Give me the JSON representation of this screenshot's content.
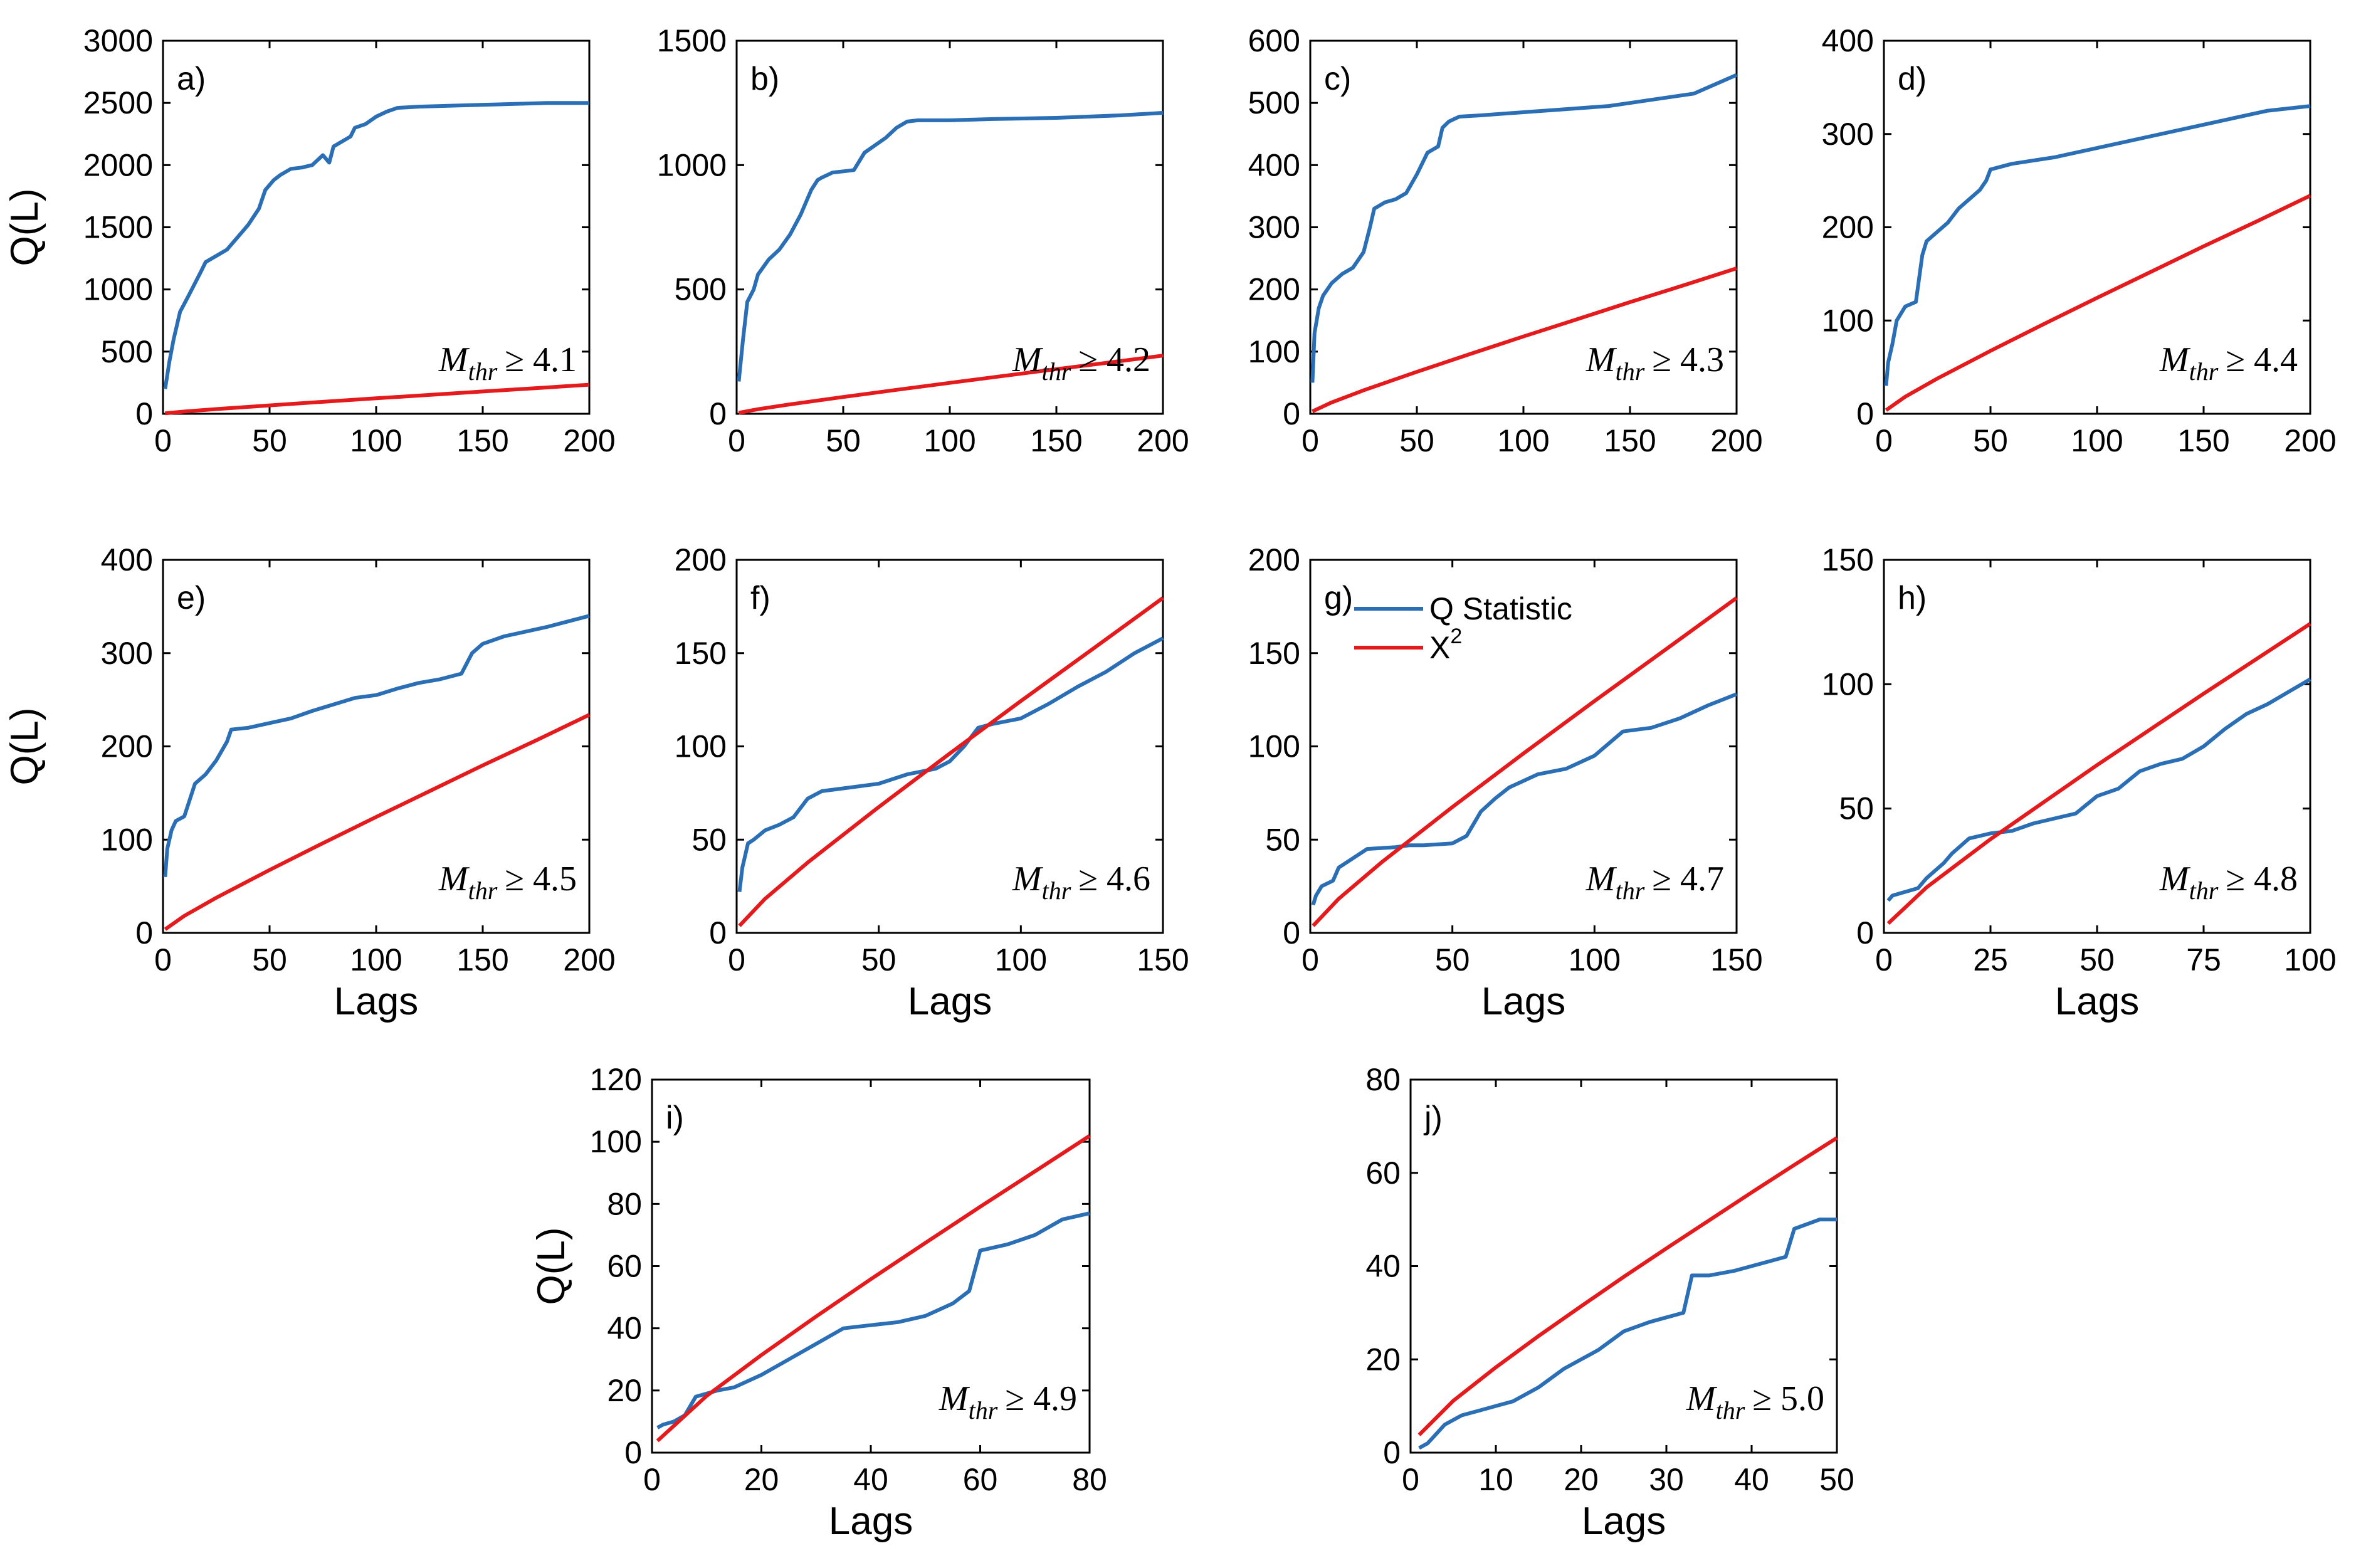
{
  "legend": {
    "q_label": "Q Statistic",
    "x_label": "X",
    "x_sup": "2"
  },
  "colors": {
    "q": "#2A6EB5",
    "x": "#E41A1C"
  },
  "chart_data": [
    {
      "type": "line",
      "panel": "a)",
      "annotation": {
        "sym": "M",
        "sub": "thr",
        "rel": "≥ 4.1"
      },
      "ylabel": "Q(L)",
      "xlabel": "",
      "xlim": [
        0,
        200
      ],
      "ylim": [
        0,
        3000
      ],
      "xticks": [
        0,
        50,
        100,
        150,
        200
      ],
      "yticks": [
        0,
        500,
        1000,
        1500,
        2000,
        2500,
        3000
      ],
      "series": [
        {
          "name": "Q Statistic",
          "x": [
            1,
            3,
            5,
            8,
            12,
            15,
            18,
            20,
            25,
            30,
            35,
            40,
            45,
            48,
            52,
            55,
            60,
            65,
            70,
            75,
            78,
            80,
            85,
            88,
            90,
            95,
            100,
            105,
            110,
            120,
            140,
            160,
            180,
            200
          ],
          "y": [
            200,
            420,
            600,
            820,
            950,
            1050,
            1150,
            1220,
            1270,
            1320,
            1420,
            1520,
            1650,
            1800,
            1880,
            1920,
            1970,
            1980,
            2000,
            2080,
            2020,
            2150,
            2200,
            2230,
            2300,
            2330,
            2390,
            2430,
            2460,
            2470,
            2480,
            2490,
            2500,
            2500
          ]
        },
        {
          "name": "X2",
          "x": [
            1,
            10,
            25,
            50,
            75,
            100,
            125,
            150,
            175,
            200
          ],
          "y": [
            3.8,
            18.3,
            37.7,
            67.5,
            96.2,
            124.3,
            151.9,
            179.6,
            206.4,
            233.9
          ]
        }
      ]
    },
    {
      "type": "line",
      "panel": "b)",
      "annotation": {
        "sym": "M",
        "sub": "thr",
        "rel": "≥ 4.2"
      },
      "ylabel": "",
      "xlabel": "",
      "xlim": [
        0,
        200
      ],
      "ylim": [
        0,
        1500
      ],
      "xticks": [
        0,
        50,
        100,
        150,
        200
      ],
      "yticks": [
        0,
        500,
        1000,
        1500
      ],
      "series": [
        {
          "name": "Q Statistic",
          "x": [
            1,
            3,
            5,
            8,
            10,
            15,
            20,
            25,
            30,
            35,
            38,
            40,
            45,
            50,
            55,
            60,
            65,
            70,
            75,
            80,
            85,
            100,
            120,
            150,
            180,
            200
          ],
          "y": [
            130,
            300,
            450,
            500,
            560,
            620,
            660,
            720,
            800,
            900,
            940,
            950,
            970,
            975,
            980,
            1050,
            1080,
            1110,
            1150,
            1175,
            1180,
            1180,
            1185,
            1190,
            1200,
            1210
          ]
        },
        {
          "name": "X2",
          "x": [
            1,
            10,
            25,
            50,
            75,
            100,
            125,
            150,
            175,
            200
          ],
          "y": [
            3.8,
            18.3,
            37.7,
            67.5,
            96.2,
            124.3,
            151.9,
            179.6,
            206.4,
            233.9
          ]
        }
      ]
    },
    {
      "type": "line",
      "panel": "c)",
      "annotation": {
        "sym": "M",
        "sub": "thr",
        "rel": "≥ 4.3"
      },
      "ylabel": "",
      "xlabel": "",
      "xlim": [
        0,
        200
      ],
      "ylim": [
        0,
        600
      ],
      "xticks": [
        0,
        50,
        100,
        150,
        200
      ],
      "yticks": [
        0,
        100,
        200,
        300,
        400,
        500,
        600
      ],
      "series": [
        {
          "name": "Q Statistic",
          "x": [
            1,
            2,
            4,
            6,
            10,
            15,
            20,
            25,
            28,
            30,
            35,
            40,
            45,
            50,
            55,
            60,
            62,
            65,
            68,
            70,
            80,
            100,
            120,
            140,
            150,
            160,
            180,
            190,
            200
          ],
          "y": [
            50,
            130,
            170,
            190,
            210,
            225,
            235,
            260,
            300,
            330,
            340,
            345,
            355,
            385,
            420,
            430,
            460,
            470,
            475,
            478,
            480,
            485,
            490,
            495,
            500,
            505,
            515,
            530,
            545
          ]
        },
        {
          "name": "X2",
          "x": [
            1,
            10,
            25,
            50,
            75,
            100,
            125,
            150,
            175,
            200
          ],
          "y": [
            3.8,
            18.3,
            37.7,
            67.5,
            96.2,
            124.3,
            151.9,
            179.6,
            206.4,
            233.9
          ]
        }
      ]
    },
    {
      "type": "line",
      "panel": "d)",
      "annotation": {
        "sym": "M",
        "sub": "thr",
        "rel": "≥ 4.4"
      },
      "ylabel": "",
      "xlabel": "",
      "xlim": [
        0,
        200
      ],
      "ylim": [
        0,
        400
      ],
      "xticks": [
        0,
        50,
        100,
        150,
        200
      ],
      "yticks": [
        0,
        100,
        200,
        300,
        400
      ],
      "series": [
        {
          "name": "Q Statistic",
          "x": [
            1,
            2,
            4,
            6,
            10,
            15,
            18,
            20,
            25,
            30,
            35,
            40,
            45,
            48,
            50,
            55,
            60,
            80,
            100,
            120,
            140,
            160,
            180,
            200
          ],
          "y": [
            30,
            55,
            75,
            100,
            115,
            120,
            170,
            185,
            195,
            205,
            220,
            230,
            240,
            250,
            262,
            265,
            268,
            275,
            285,
            295,
            305,
            315,
            325,
            330
          ]
        },
        {
          "name": "X2",
          "x": [
            1,
            10,
            25,
            50,
            75,
            100,
            125,
            150,
            175,
            200
          ],
          "y": [
            3.8,
            18.3,
            37.7,
            67.5,
            96.2,
            124.3,
            151.9,
            179.6,
            206.4,
            233.9
          ]
        }
      ]
    },
    {
      "type": "line",
      "panel": "e)",
      "annotation": {
        "sym": "M",
        "sub": "thr",
        "rel": "≥ 4.5"
      },
      "ylabel": "Q(L)",
      "xlabel": "Lags",
      "xlim": [
        0,
        200
      ],
      "ylim": [
        0,
        400
      ],
      "xticks": [
        0,
        50,
        100,
        150,
        200
      ],
      "yticks": [
        0,
        100,
        200,
        300,
        400
      ],
      "series": [
        {
          "name": "Q Statistic",
          "x": [
            1,
            2,
            4,
            6,
            10,
            15,
            20,
            25,
            30,
            32,
            40,
            50,
            60,
            70,
            80,
            90,
            100,
            110,
            120,
            130,
            140,
            145,
            150,
            160,
            180,
            200
          ],
          "y": [
            60,
            90,
            110,
            120,
            125,
            160,
            170,
            185,
            205,
            218,
            220,
            225,
            230,
            238,
            245,
            252,
            255,
            262,
            268,
            272,
            278,
            300,
            310,
            318,
            328,
            340
          ]
        },
        {
          "name": "X2",
          "x": [
            1,
            10,
            25,
            50,
            75,
            100,
            125,
            150,
            175,
            200
          ],
          "y": [
            3.8,
            18.3,
            37.7,
            67.5,
            96.2,
            124.3,
            151.9,
            179.6,
            206.4,
            233.9
          ]
        }
      ]
    },
    {
      "type": "line",
      "panel": "f)",
      "annotation": {
        "sym": "M",
        "sub": "thr",
        "rel": "≥ 4.6"
      },
      "ylabel": "",
      "xlabel": "Lags",
      "xlim": [
        0,
        150
      ],
      "ylim": [
        0,
        200
      ],
      "xticks": [
        0,
        50,
        100,
        150
      ],
      "yticks": [
        0,
        50,
        100,
        150,
        200
      ],
      "series": [
        {
          "name": "Q Statistic",
          "x": [
            1,
            2,
            4,
            6,
            10,
            15,
            20,
            25,
            30,
            40,
            50,
            60,
            70,
            75,
            80,
            85,
            90,
            100,
            110,
            120,
            130,
            140,
            150
          ],
          "y": [
            22,
            35,
            48,
            50,
            55,
            58,
            62,
            72,
            76,
            78,
            80,
            85,
            88,
            92,
            100,
            110,
            112,
            115,
            123,
            132,
            140,
            150,
            158
          ]
        },
        {
          "name": "X2",
          "x": [
            1,
            10,
            25,
            50,
            75,
            100,
            125,
            150
          ],
          "y": [
            3.8,
            18.3,
            37.7,
            67.5,
            96.2,
            124.3,
            151.9,
            179.6
          ]
        }
      ]
    },
    {
      "type": "line",
      "panel": "g)",
      "annotation": {
        "sym": "M",
        "sub": "thr",
        "rel": "≥ 4.7"
      },
      "ylabel": "",
      "xlabel": "Lags",
      "xlim": [
        0,
        150
      ],
      "ylim": [
        0,
        200
      ],
      "xticks": [
        0,
        50,
        100,
        150
      ],
      "yticks": [
        0,
        50,
        100,
        150,
        200
      ],
      "series": [
        {
          "name": "Q Statistic",
          "x": [
            1,
            2,
            4,
            8,
            10,
            15,
            20,
            30,
            35,
            40,
            50,
            55,
            60,
            65,
            70,
            80,
            90,
            100,
            110,
            120,
            130,
            140,
            150
          ],
          "y": [
            15,
            20,
            25,
            28,
            35,
            40,
            45,
            46,
            47,
            47,
            48,
            52,
            65,
            72,
            78,
            85,
            88,
            95,
            108,
            110,
            115,
            122,
            128
          ]
        },
        {
          "name": "X2",
          "x": [
            1,
            10,
            25,
            50,
            75,
            100,
            125,
            150
          ],
          "y": [
            3.8,
            18.3,
            37.7,
            67.5,
            96.2,
            124.3,
            151.9,
            179.6
          ]
        }
      ]
    },
    {
      "type": "line",
      "panel": "h)",
      "annotation": {
        "sym": "M",
        "sub": "thr",
        "rel": "≥ 4.8"
      },
      "ylabel": "",
      "xlabel": "Lags",
      "xlim": [
        0,
        100
      ],
      "ylim": [
        0,
        150
      ],
      "xticks": [
        0,
        25,
        50,
        75,
        100
      ],
      "yticks": [
        0,
        50,
        100,
        150
      ],
      "series": [
        {
          "name": "Q Statistic",
          "x": [
            1,
            2,
            4,
            6,
            8,
            10,
            12,
            14,
            16,
            18,
            20,
            25,
            30,
            35,
            40,
            45,
            50,
            55,
            60,
            65,
            70,
            75,
            80,
            85,
            90,
            95,
            100
          ],
          "y": [
            13,
            15,
            16,
            17,
            18,
            22,
            25,
            28,
            32,
            35,
            38,
            40,
            41,
            44,
            46,
            48,
            55,
            58,
            65,
            68,
            70,
            75,
            82,
            88,
            92,
            97,
            102
          ]
        },
        {
          "name": "X2",
          "x": [
            1,
            10,
            25,
            50,
            75,
            100
          ],
          "y": [
            3.8,
            18.3,
            37.7,
            67.5,
            96.2,
            124.3
          ]
        }
      ]
    },
    {
      "type": "line",
      "panel": "i)",
      "annotation": {
        "sym": "M",
        "sub": "thr",
        "rel": "≥ 4.9"
      },
      "ylabel": "Q(L)",
      "xlabel": "Lags",
      "xlim": [
        0,
        80
      ],
      "ylim": [
        0,
        120
      ],
      "xticks": [
        0,
        20,
        40,
        60,
        80
      ],
      "yticks": [
        0,
        20,
        40,
        60,
        80,
        100,
        120
      ],
      "series": [
        {
          "name": "Q Statistic",
          "x": [
            1,
            2,
            4,
            6,
            8,
            10,
            12,
            15,
            20,
            25,
            30,
            35,
            40,
            45,
            50,
            55,
            58,
            60,
            65,
            70,
            75,
            80
          ],
          "y": [
            8,
            9,
            10,
            12,
            18,
            19,
            20,
            21,
            25,
            30,
            35,
            40,
            41,
            42,
            44,
            48,
            52,
            65,
            67,
            70,
            75,
            77
          ]
        },
        {
          "name": "X2",
          "x": [
            1,
            10,
            20,
            30,
            40,
            50,
            60,
            70,
            80
          ],
          "y": [
            3.8,
            18.3,
            31.4,
            43.8,
            55.8,
            67.5,
            79.1,
            90.5,
            101.9
          ]
        }
      ]
    },
    {
      "type": "line",
      "panel": "j)",
      "annotation": {
        "sym": "M",
        "sub": "thr",
        "rel": "≥ 5.0"
      },
      "ylabel": "",
      "xlabel": "Lags",
      "xlim": [
        0,
        50
      ],
      "ylim": [
        0,
        80
      ],
      "xticks": [
        0,
        10,
        20,
        30,
        40,
        50
      ],
      "yticks": [
        0,
        20,
        40,
        60,
        80
      ],
      "series": [
        {
          "name": "Q Statistic",
          "x": [
            1,
            2,
            3,
            4,
            6,
            8,
            10,
            12,
            15,
            18,
            20,
            22,
            25,
            28,
            30,
            32,
            33,
            35,
            38,
            40,
            42,
            44,
            45,
            48,
            50
          ],
          "y": [
            1,
            2,
            4,
            6,
            8,
            9,
            10,
            11,
            14,
            18,
            20,
            22,
            26,
            28,
            29,
            30,
            38,
            38,
            39,
            40,
            41,
            42,
            48,
            50,
            50
          ]
        },
        {
          "name": "X2",
          "x": [
            1,
            5,
            10,
            15,
            20,
            25,
            30,
            35,
            40,
            45,
            50
          ],
          "y": [
            3.8,
            11.1,
            18.3,
            25.0,
            31.4,
            37.7,
            43.8,
            49.8,
            55.8,
            61.7,
            67.5
          ]
        }
      ]
    }
  ]
}
